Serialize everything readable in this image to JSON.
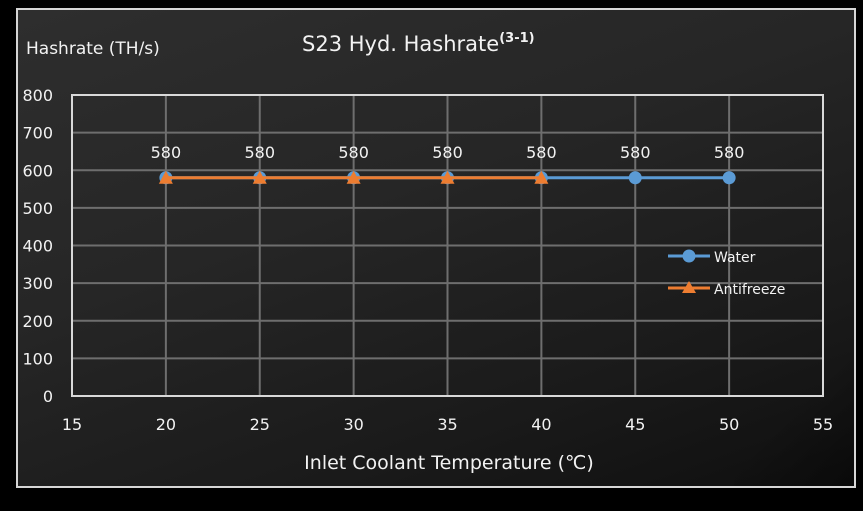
{
  "chart_data": {
    "type": "line",
    "title": "S23 Hyd. Hashrate",
    "title_superscript": "(3-1)",
    "xlabel": "Inlet Coolant Temperature (℃)",
    "ylabel": "Hashrate (TH/s)",
    "xlim": [
      15,
      55
    ],
    "ylim": [
      0,
      800
    ],
    "x_ticks": [
      15,
      20,
      25,
      30,
      35,
      40,
      45,
      50,
      55
    ],
    "y_ticks": [
      0,
      100,
      200,
      300,
      400,
      500,
      600,
      700,
      800
    ],
    "grid": true,
    "legend_position": "right",
    "series": [
      {
        "name": "Water",
        "color": "#5b9bd5",
        "marker": "circle",
        "x": [
          20,
          25,
          30,
          35,
          40,
          45,
          50
        ],
        "values": [
          580,
          580,
          580,
          580,
          580,
          580,
          580
        ]
      },
      {
        "name": "Antifreeze",
        "color": "#ed7d31",
        "marker": "triangle",
        "x": [
          20,
          25,
          30,
          35,
          40
        ],
        "values": [
          580,
          580,
          580,
          580,
          580
        ]
      }
    ],
    "data_labels": [
      {
        "x": 20,
        "label": "580"
      },
      {
        "x": 25,
        "label": "580"
      },
      {
        "x": 30,
        "label": "580"
      },
      {
        "x": 35,
        "label": "580"
      },
      {
        "x": 40,
        "label": "580"
      },
      {
        "x": 45,
        "label": "580"
      },
      {
        "x": 50,
        "label": "580"
      }
    ]
  }
}
